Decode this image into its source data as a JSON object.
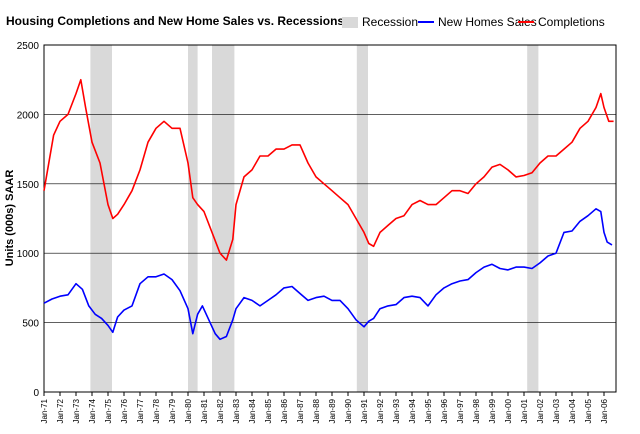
{
  "chart_data": {
    "type": "line",
    "title": "Housing Completions and New Home Sales vs. Recessions",
    "ylabel": "Units (000s) SAAR",
    "xlabel": "",
    "ylim": [
      0,
      2500
    ],
    "yticks": [
      0,
      500,
      1000,
      1500,
      2000,
      2500
    ],
    "xlim": [
      1971.0,
      2006.75
    ],
    "grid": "horizontal",
    "legend_position": "top",
    "xtick_labels": [
      "Jan-71",
      "Jan-72",
      "Jan-73",
      "Jan-74",
      "Jan-75",
      "Jan-76",
      "Jan-77",
      "Jan-78",
      "Jan-79",
      "Jan-80",
      "Jan-81",
      "Jan-82",
      "Jan-83",
      "Jan-84",
      "Jan-85",
      "Jan-86",
      "Jan-87",
      "Jan-88",
      "Jan-89",
      "Jan-90",
      "Jan-91",
      "Jan-92",
      "Jan-93",
      "Jan-94",
      "Jan-95",
      "Jan-96",
      "Jan-97",
      "Jan-98",
      "Jan-99",
      "Jan-00",
      "Jan-01",
      "Jan-02",
      "Jan-03",
      "Jan-04",
      "Jan-05",
      "Jan-06"
    ],
    "recessions": {
      "name": "Recession",
      "color": "#d9d9d9",
      "periods": [
        [
          1973.9,
          1975.25
        ],
        [
          1980.0,
          1980.6
        ],
        [
          1981.5,
          1982.9
        ],
        [
          1990.55,
          1991.25
        ],
        [
          2001.2,
          2001.9
        ]
      ]
    },
    "series": [
      {
        "name": "New Homes Sales",
        "color": "#0000ff",
        "points": [
          [
            1971.0,
            640
          ],
          [
            1971.5,
            670
          ],
          [
            1972.0,
            690
          ],
          [
            1972.5,
            700
          ],
          [
            1973.0,
            780
          ],
          [
            1973.4,
            740
          ],
          [
            1973.8,
            620
          ],
          [
            1974.2,
            560
          ],
          [
            1974.6,
            530
          ],
          [
            1975.0,
            480
          ],
          [
            1975.3,
            430
          ],
          [
            1975.6,
            540
          ],
          [
            1976.0,
            590
          ],
          [
            1976.5,
            620
          ],
          [
            1977.0,
            780
          ],
          [
            1977.5,
            830
          ],
          [
            1978.0,
            830
          ],
          [
            1978.5,
            850
          ],
          [
            1979.0,
            810
          ],
          [
            1979.5,
            730
          ],
          [
            1980.0,
            600
          ],
          [
            1980.3,
            420
          ],
          [
            1980.6,
            560
          ],
          [
            1980.9,
            620
          ],
          [
            1981.3,
            520
          ],
          [
            1981.7,
            420
          ],
          [
            1982.0,
            380
          ],
          [
            1982.4,
            400
          ],
          [
            1982.8,
            520
          ],
          [
            1983.0,
            600
          ],
          [
            1983.5,
            680
          ],
          [
            1984.0,
            660
          ],
          [
            1984.5,
            620
          ],
          [
            1985.0,
            660
          ],
          [
            1985.5,
            700
          ],
          [
            1986.0,
            750
          ],
          [
            1986.5,
            760
          ],
          [
            1987.0,
            710
          ],
          [
            1987.5,
            660
          ],
          [
            1988.0,
            680
          ],
          [
            1988.5,
            690
          ],
          [
            1989.0,
            660
          ],
          [
            1989.5,
            660
          ],
          [
            1990.0,
            600
          ],
          [
            1990.5,
            520
          ],
          [
            1991.0,
            470
          ],
          [
            1991.3,
            510
          ],
          [
            1991.6,
            530
          ],
          [
            1992.0,
            600
          ],
          [
            1992.5,
            620
          ],
          [
            1993.0,
            630
          ],
          [
            1993.5,
            680
          ],
          [
            1994.0,
            690
          ],
          [
            1994.5,
            680
          ],
          [
            1995.0,
            620
          ],
          [
            1995.5,
            700
          ],
          [
            1996.0,
            750
          ],
          [
            1996.5,
            780
          ],
          [
            1997.0,
            800
          ],
          [
            1997.5,
            810
          ],
          [
            1998.0,
            860
          ],
          [
            1998.5,
            900
          ],
          [
            1999.0,
            920
          ],
          [
            1999.5,
            890
          ],
          [
            2000.0,
            880
          ],
          [
            2000.5,
            900
          ],
          [
            2001.0,
            900
          ],
          [
            2001.5,
            890
          ],
          [
            2002.0,
            930
          ],
          [
            2002.5,
            980
          ],
          [
            2003.0,
            1000
          ],
          [
            2003.5,
            1150
          ],
          [
            2004.0,
            1160
          ],
          [
            2004.5,
            1230
          ],
          [
            2005.0,
            1270
          ],
          [
            2005.5,
            1320
          ],
          [
            2005.8,
            1300
          ],
          [
            2006.0,
            1150
          ],
          [
            2006.2,
            1080
          ],
          [
            2006.5,
            1060
          ]
        ]
      },
      {
        "name": "Completions",
        "color": "#ff0000",
        "points": [
          [
            1971.0,
            1450
          ],
          [
            1971.3,
            1650
          ],
          [
            1971.6,
            1850
          ],
          [
            1972.0,
            1950
          ],
          [
            1972.5,
            2000
          ],
          [
            1973.0,
            2150
          ],
          [
            1973.3,
            2250
          ],
          [
            1973.6,
            2050
          ],
          [
            1974.0,
            1800
          ],
          [
            1974.5,
            1650
          ],
          [
            1975.0,
            1350
          ],
          [
            1975.3,
            1250
          ],
          [
            1975.6,
            1280
          ],
          [
            1976.0,
            1350
          ],
          [
            1976.5,
            1450
          ],
          [
            1977.0,
            1600
          ],
          [
            1977.5,
            1800
          ],
          [
            1978.0,
            1900
          ],
          [
            1978.5,
            1950
          ],
          [
            1979.0,
            1900
          ],
          [
            1979.5,
            1900
          ],
          [
            1980.0,
            1650
          ],
          [
            1980.3,
            1400
          ],
          [
            1980.6,
            1350
          ],
          [
            1981.0,
            1300
          ],
          [
            1981.5,
            1150
          ],
          [
            1982.0,
            1000
          ],
          [
            1982.4,
            950
          ],
          [
            1982.8,
            1100
          ],
          [
            1983.0,
            1350
          ],
          [
            1983.5,
            1550
          ],
          [
            1984.0,
            1600
          ],
          [
            1984.5,
            1700
          ],
          [
            1985.0,
            1700
          ],
          [
            1985.5,
            1750
          ],
          [
            1986.0,
            1750
          ],
          [
            1986.5,
            1780
          ],
          [
            1987.0,
            1780
          ],
          [
            1987.5,
            1650
          ],
          [
            1988.0,
            1550
          ],
          [
            1988.5,
            1500
          ],
          [
            1989.0,
            1450
          ],
          [
            1989.5,
            1400
          ],
          [
            1990.0,
            1350
          ],
          [
            1990.5,
            1250
          ],
          [
            1991.0,
            1150
          ],
          [
            1991.3,
            1070
          ],
          [
            1991.6,
            1050
          ],
          [
            1992.0,
            1150
          ],
          [
            1992.5,
            1200
          ],
          [
            1993.0,
            1250
          ],
          [
            1993.5,
            1270
          ],
          [
            1994.0,
            1350
          ],
          [
            1994.5,
            1380
          ],
          [
            1995.0,
            1350
          ],
          [
            1995.5,
            1350
          ],
          [
            1996.0,
            1400
          ],
          [
            1996.5,
            1450
          ],
          [
            1997.0,
            1450
          ],
          [
            1997.5,
            1430
          ],
          [
            1998.0,
            1500
          ],
          [
            1998.5,
            1550
          ],
          [
            1999.0,
            1620
          ],
          [
            1999.5,
            1640
          ],
          [
            2000.0,
            1600
          ],
          [
            2000.5,
            1550
          ],
          [
            2001.0,
            1560
          ],
          [
            2001.5,
            1580
          ],
          [
            2002.0,
            1650
          ],
          [
            2002.5,
            1700
          ],
          [
            2003.0,
            1700
          ],
          [
            2003.5,
            1750
          ],
          [
            2004.0,
            1800
          ],
          [
            2004.5,
            1900
          ],
          [
            2005.0,
            1950
          ],
          [
            2005.5,
            2050
          ],
          [
            2005.8,
            2150
          ],
          [
            2006.0,
            2050
          ],
          [
            2006.3,
            1950
          ],
          [
            2006.6,
            1950
          ]
        ]
      }
    ]
  }
}
